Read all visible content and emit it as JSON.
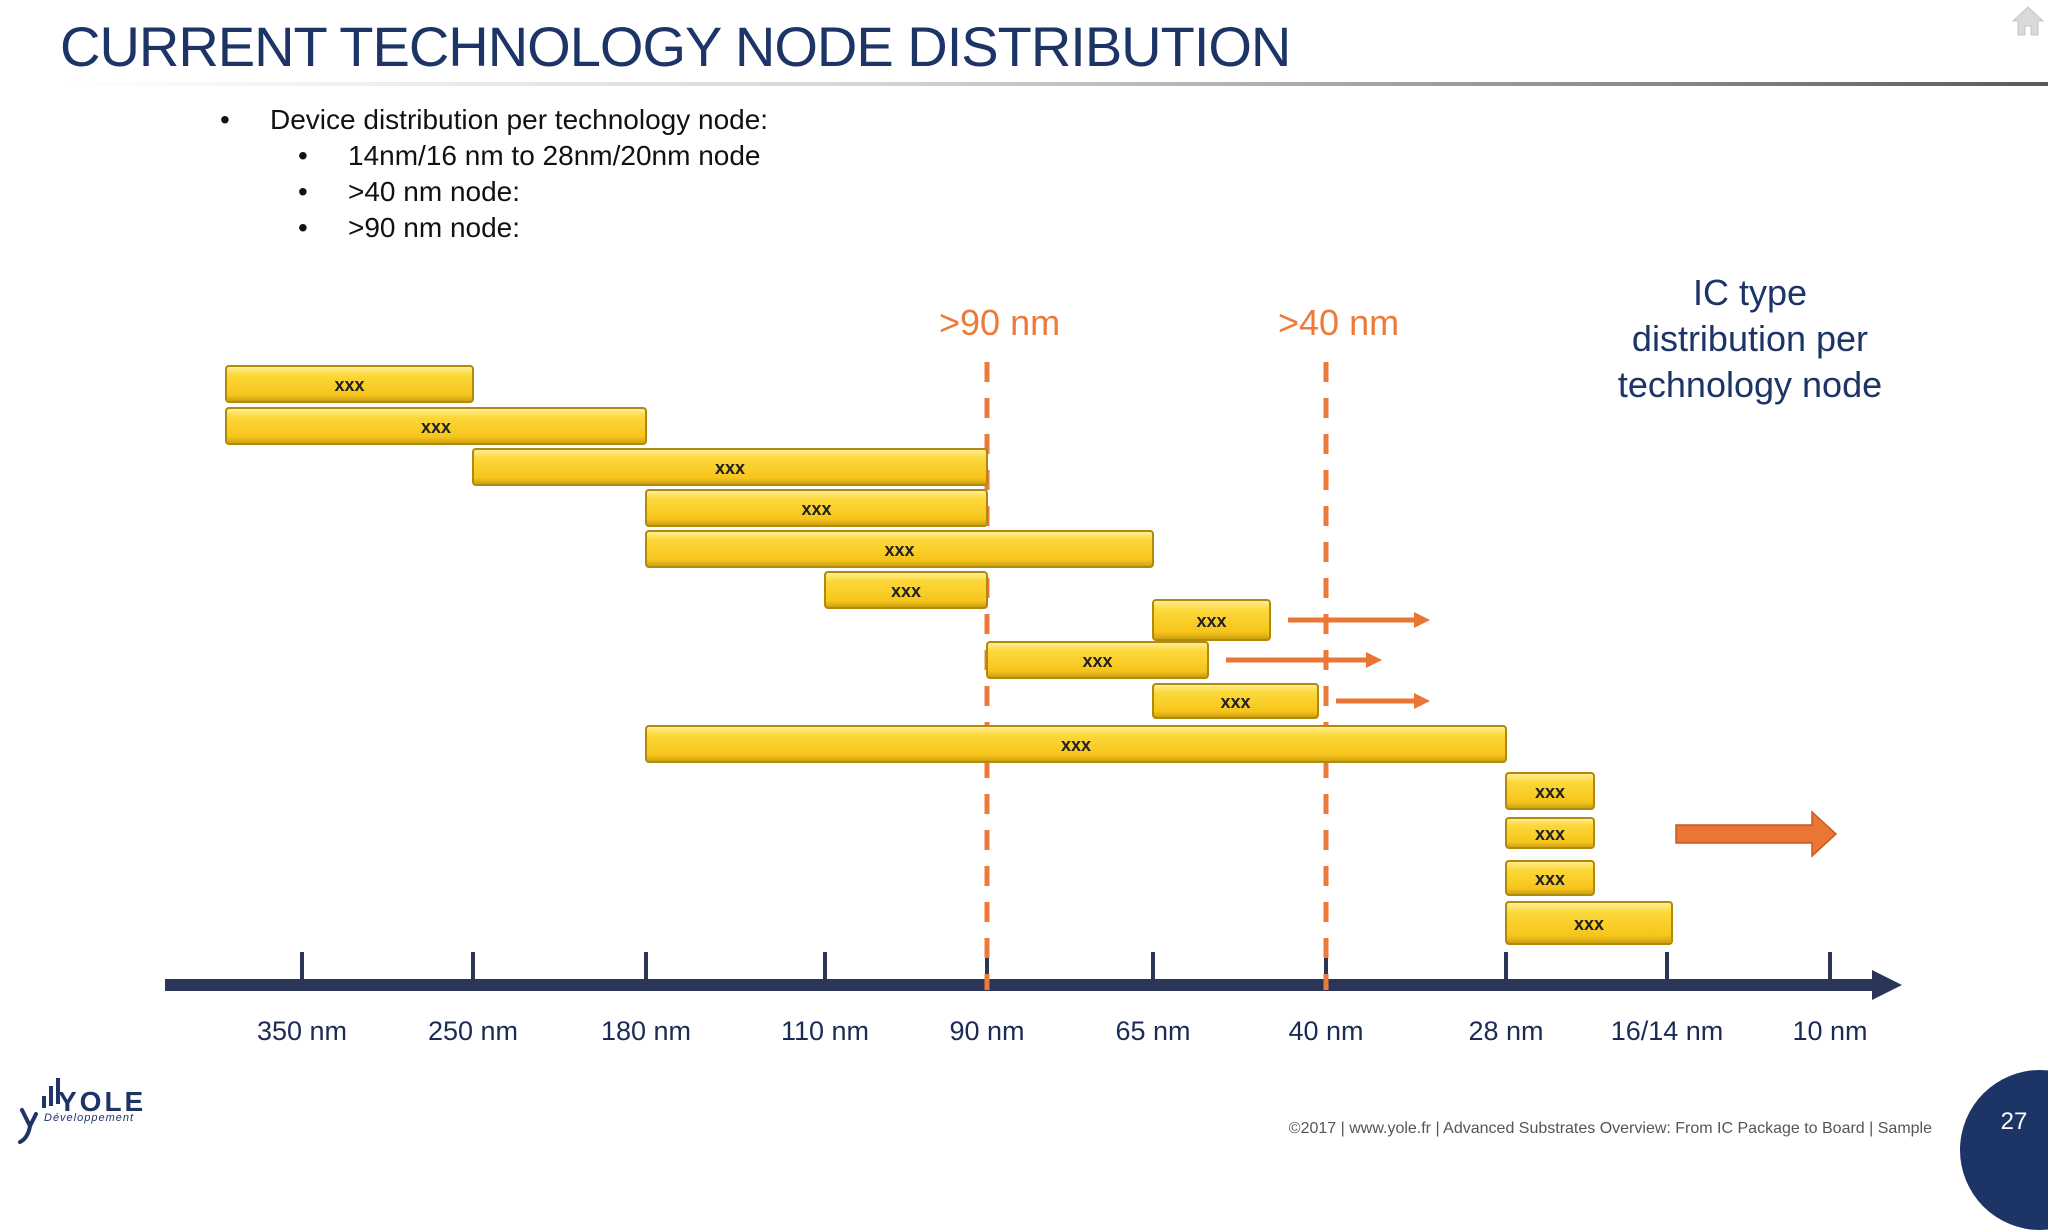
{
  "title": "CURRENT TECHNOLOGY NODE DISTRIBUTION",
  "bullets": [
    {
      "text": "Device distribution per technology node:",
      "level": 1
    },
    {
      "text": "14nm/16 nm to 28nm/20nm node",
      "level": 2
    },
    {
      "text": ">40 nm node:",
      "level": 2
    },
    {
      "text": ">90 nm node:",
      "level": 2
    }
  ],
  "bullet_glyph": "•",
  "ic_type_label": [
    "IC type",
    "distribution per",
    "technology node"
  ],
  "axis": {
    "nodes": [
      "350 nm",
      "250 nm",
      "180 nm",
      "110 nm",
      "90 nm",
      "65 nm",
      "40 nm",
      "28 nm",
      "16/14 nm",
      "10 nm"
    ]
  },
  "thresholds": [
    {
      "label": ">90 nm",
      "node": "90 nm"
    },
    {
      "label": ">40 nm",
      "node": "40 nm"
    }
  ],
  "bars": [
    {
      "label": "xxx",
      "from": "350 nm",
      "to": "250 nm"
    },
    {
      "label": "xxx",
      "from": "350 nm",
      "to": "180 nm"
    },
    {
      "label": "xxx",
      "from": "250 nm",
      "to": "90 nm"
    },
    {
      "label": "xxx",
      "from": "180 nm",
      "to": "90 nm"
    },
    {
      "label": "xxx",
      "from": "180 nm",
      "to": "65 nm"
    },
    {
      "label": "xxx",
      "from": "110 nm",
      "to": "90 nm"
    },
    {
      "label": "xxx",
      "from": "65 nm",
      "to": "40 nm",
      "arrow": true
    },
    {
      "label": "xxx",
      "from": "90 nm",
      "to": "65 nm",
      "arrow": true
    },
    {
      "label": "xxx",
      "from": "65 nm",
      "to": "40 nm",
      "arrow": true
    },
    {
      "label": "xxx",
      "from": "180 nm",
      "to": "28 nm"
    },
    {
      "label": "xxx",
      "from": "28 nm",
      "to": "16/14 nm"
    },
    {
      "label": "xxx",
      "from": "28 nm",
      "to": "16/14 nm"
    },
    {
      "label": "xxx",
      "from": "28 nm",
      "to": "16/14 nm"
    },
    {
      "label": "xxx",
      "from": "28 nm",
      "to": "16/14 nm"
    }
  ],
  "big_arrow": {
    "direction": "right"
  },
  "footer": "©2017 | www.yole.fr | Advanced Substrates Overview: From IC Package to Board | Sample",
  "page_number": "27",
  "logo": {
    "word": "YOLE",
    "sub": "Développement"
  },
  "colors": {
    "title": "#1d3466",
    "axis": "#2b3557",
    "bar": "#fcd12a",
    "bar_border": "#b08a0c",
    "threshold": "#ec7a3b",
    "arrow": "#ea7534"
  },
  "icons": {
    "home": "home-icon"
  }
}
